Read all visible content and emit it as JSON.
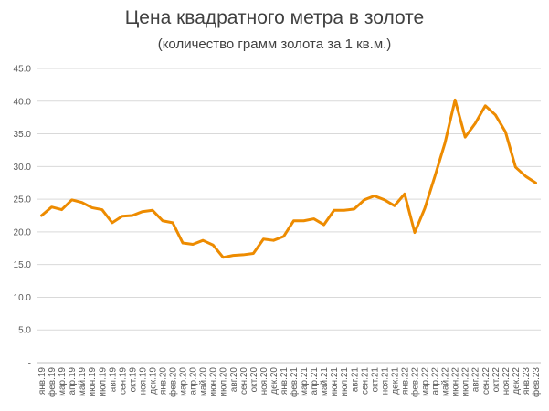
{
  "chart_data": {
    "type": "line",
    "title": "Цена квадратного метра в золоте",
    "subtitle": "(количество грамм золота за 1 кв.м.)",
    "xlabel": "",
    "ylabel": "",
    "ylim": [
      0,
      45
    ],
    "ytick_labels": [
      "-",
      "5.0",
      "10.0",
      "15.0",
      "20.0",
      "25.0",
      "30.0",
      "35.0",
      "40.0",
      "45.0"
    ],
    "grid": true,
    "legend": "none",
    "line_color": "#ED8B00",
    "categories": [
      "янв.19",
      "фев.19",
      "мар.19",
      "апр.19",
      "май.19",
      "июн.19",
      "июл.19",
      "авг.19",
      "сен.19",
      "окт.19",
      "ноя.19",
      "дек.19",
      "янв.20",
      "фев.20",
      "мар.20",
      "апр.20",
      "май.20",
      "июн.20",
      "июл.20",
      "авг.20",
      "сен.20",
      "окт.20",
      "ноя.20",
      "дек.20",
      "янв.21",
      "фев.21",
      "мар.21",
      "апр.21",
      "май.21",
      "июн.21",
      "июл.21",
      "авг.21",
      "сен.21",
      "окт.21",
      "ноя.21",
      "дек.21",
      "янв.22",
      "фев.22",
      "мар.22",
      "апр.22",
      "май.22",
      "июн.22",
      "июл.22",
      "авг.22",
      "сен.22",
      "окт.22",
      "ноя.22",
      "дек.22",
      "янв.23",
      "фев.23"
    ],
    "values": [
      22.5,
      23.8,
      23.4,
      24.9,
      24.5,
      23.7,
      23.4,
      21.4,
      22.4,
      22.5,
      23.1,
      23.3,
      21.7,
      21.4,
      18.3,
      18.1,
      18.7,
      18.0,
      16.1,
      16.4,
      16.5,
      16.7,
      18.9,
      18.7,
      19.3,
      21.7,
      21.7,
      22.0,
      21.1,
      23.3,
      23.3,
      23.5,
      24.9,
      25.5,
      24.9,
      24.0,
      25.8,
      19.9,
      23.6,
      28.5,
      33.6,
      40.2,
      34.5,
      36.6,
      39.3,
      37.9,
      35.3,
      29.9,
      28.5,
      27.5
    ]
  }
}
